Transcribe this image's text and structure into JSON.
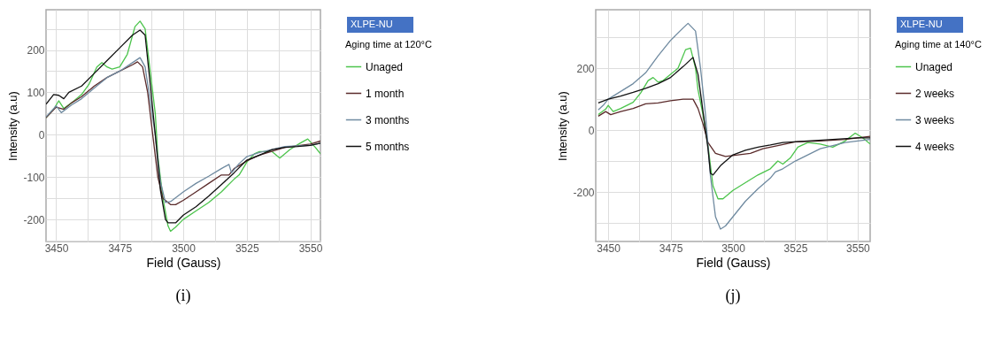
{
  "chart_data": [
    {
      "type": "line",
      "xlabel": "Field (Gauss)",
      "ylabel": "Intensity (a.u)",
      "legend_title": "Aging time at 120°C",
      "legend": "right",
      "grid": true,
      "marker": "none",
      "line_style": "solid",
      "annotations": [
        "XLPE-NU",
        "(i)"
      ],
      "xlim": [
        3446,
        3554
      ],
      "ylim": [
        -252,
        295
      ],
      "xticks": [
        3450,
        {
          "value": 3462.5,
          "label": null
        },
        3475,
        {
          "value": 3487.5,
          "label": null
        },
        3500,
        {
          "value": 3512.5,
          "label": null
        },
        3525,
        {
          "value": 3537.5,
          "label": null
        },
        3550
      ],
      "yticks": [
        {
          "value": -250,
          "label": null
        },
        -200,
        {
          "value": -150,
          "label": null
        },
        -100,
        {
          "value": -50,
          "label": null
        },
        0,
        {
          "value": 50,
          "label": null
        },
        100,
        {
          "value": 150,
          "label": null
        },
        200,
        {
          "value": 250,
          "label": null
        }
      ],
      "series": [
        {
          "name": "Unaged",
          "color": "#4cc44c",
          "x": [
            3446,
            3449,
            3451,
            3453,
            3456,
            3460,
            3463,
            3466,
            3468,
            3470,
            3472,
            3475,
            3478,
            3481,
            3483,
            3485,
            3487,
            3489,
            3490,
            3492,
            3494,
            3495,
            3497,
            3500,
            3505,
            3510,
            3515,
            3520,
            3522,
            3525,
            3528,
            3530,
            3535,
            3538,
            3542,
            3546,
            3549,
            3552,
            3554
          ],
          "values": [
            40,
            60,
            80,
            62,
            75,
            95,
            120,
            160,
            170,
            160,
            155,
            160,
            190,
            255,
            268,
            250,
            150,
            50,
            -50,
            -150,
            -215,
            -228,
            -218,
            -200,
            -180,
            -160,
            -135,
            -105,
            -95,
            -65,
            -45,
            -40,
            -40,
            -55,
            -35,
            -20,
            -10,
            -30,
            -45
          ]
        },
        {
          "name": "1 month",
          "color": "#5a2a2a",
          "x": [
            3446,
            3450,
            3453,
            3456,
            3460,
            3465,
            3470,
            3475,
            3480,
            3482,
            3484,
            3486,
            3488,
            3490,
            3492,
            3495,
            3497,
            3500,
            3505,
            3510,
            3515,
            3518,
            3520,
            3525,
            3530,
            3540,
            3550,
            3554
          ],
          "values": [
            40,
            65,
            60,
            75,
            90,
            115,
            135,
            150,
            165,
            172,
            160,
            100,
            0,
            -100,
            -150,
            -165,
            -165,
            -155,
            -135,
            -115,
            -95,
            -95,
            -80,
            -62,
            -48,
            -30,
            -22,
            -15
          ]
        },
        {
          "name": "3 months",
          "color": "#6f8aa0",
          "x": [
            3446,
            3450,
            3452,
            3456,
            3460,
            3465,
            3470,
            3475,
            3480,
            3483,
            3485,
            3487,
            3489,
            3491,
            3493,
            3495,
            3500,
            3505,
            3510,
            3515,
            3518,
            3519,
            3522,
            3525,
            3530,
            3540,
            3550,
            3554
          ],
          "values": [
            42,
            68,
            52,
            70,
            85,
            110,
            135,
            150,
            170,
            182,
            160,
            80,
            0,
            -110,
            -160,
            -158,
            -135,
            -115,
            -98,
            -80,
            -70,
            -90,
            -68,
            -52,
            -42,
            -28,
            -25,
            -20
          ]
        },
        {
          "name": "5 months",
          "color": "#111111",
          "x": [
            3446,
            3449,
            3451,
            3453,
            3455,
            3460,
            3465,
            3470,
            3475,
            3480,
            3483,
            3485,
            3487,
            3489,
            3491,
            3493,
            3494,
            3497,
            3500,
            3505,
            3510,
            3515,
            3520,
            3525,
            3530,
            3535,
            3540,
            3545,
            3550,
            3554
          ],
          "values": [
            72,
            95,
            93,
            85,
            100,
            115,
            145,
            175,
            205,
            235,
            247,
            235,
            120,
            0,
            -130,
            -200,
            -208,
            -208,
            -190,
            -170,
            -145,
            -118,
            -90,
            -60,
            -48,
            -35,
            -30,
            -28,
            -25,
            -20
          ]
        }
      ]
    },
    {
      "type": "line",
      "xlabel": "Field (Gauss)",
      "ylabel": "Intensity (a.u)",
      "legend_title": "Aging time at 140°C",
      "legend": "right",
      "grid": true,
      "marker": "none",
      "line_style": "solid",
      "annotations": [
        "XLPE-NU",
        "(j)"
      ],
      "xlim": [
        3445,
        3555
      ],
      "ylim": [
        -360,
        389
      ],
      "xticks": [
        3450,
        {
          "value": 3462.5,
          "label": null
        },
        3475,
        {
          "value": 3487.5,
          "label": null
        },
        3500,
        {
          "value": 3512.5,
          "label": null
        },
        3525,
        {
          "value": 3537.5,
          "label": null
        },
        3550
      ],
      "yticks": [
        {
          "value": -300,
          "label": null
        },
        -200,
        {
          "value": -100,
          "label": null
        },
        0,
        {
          "value": 100,
          "label": null
        },
        200,
        {
          "value": 300,
          "label": null
        }
      ],
      "series": [
        {
          "name": "Unaged",
          "color": "#4cc44c",
          "x": [
            3446,
            3449,
            3450,
            3452,
            3455,
            3460,
            3463,
            3466,
            3468,
            3470,
            3472,
            3475,
            3478,
            3481,
            3483,
            3485,
            3486,
            3488,
            3490,
            3492,
            3494,
            3496,
            3500,
            3505,
            3510,
            3515,
            3518,
            3520,
            3523,
            3526,
            3530,
            3535,
            3540,
            3545,
            3549,
            3552,
            3555
          ],
          "values": [
            50,
            68,
            80,
            60,
            70,
            90,
            120,
            160,
            170,
            155,
            160,
            180,
            200,
            260,
            265,
            200,
            130,
            50,
            -50,
            -180,
            -222,
            -222,
            -195,
            -170,
            -145,
            -125,
            -100,
            -110,
            -90,
            -55,
            -40,
            -45,
            -55,
            -35,
            -10,
            -25,
            -45
          ]
        },
        {
          "name": "2 weeks",
          "color": "#5a2a2a",
          "x": [
            3446,
            3449,
            3451,
            3455,
            3460,
            3465,
            3470,
            3475,
            3480,
            3484,
            3486,
            3488,
            3490,
            3493,
            3497,
            3502,
            3507,
            3512,
            3518,
            3525,
            3535,
            3545,
            3555
          ],
          "values": [
            45,
            60,
            50,
            60,
            70,
            85,
            88,
            95,
            100,
            100,
            70,
            20,
            -40,
            -75,
            -85,
            -80,
            -75,
            -60,
            -50,
            -38,
            -35,
            -30,
            -20
          ]
        },
        {
          "name": "3 weeks",
          "color": "#6f8aa0",
          "x": [
            3446,
            3448,
            3450,
            3455,
            3460,
            3465,
            3470,
            3475,
            3480,
            3482,
            3485,
            3487,
            3489,
            3491,
            3493,
            3495,
            3497,
            3500,
            3505,
            3510,
            3515,
            3517,
            3520,
            3525,
            3530,
            3535,
            3540,
            3545,
            3550,
            3555
          ],
          "values": [
            65,
            80,
            100,
            125,
            150,
            185,
            240,
            290,
            330,
            345,
            320,
            200,
            50,
            -150,
            -280,
            -320,
            -310,
            -280,
            -230,
            -190,
            -155,
            -135,
            -125,
            -100,
            -80,
            -60,
            -50,
            -40,
            -35,
            -30
          ]
        },
        {
          "name": "4 weeks",
          "color": "#111111",
          "x": [
            3446,
            3450,
            3455,
            3460,
            3465,
            3470,
            3475,
            3480,
            3484,
            3486,
            3488,
            3490,
            3491,
            3492,
            3495,
            3500,
            3505,
            3510,
            3515,
            3520,
            3530,
            3540,
            3550,
            3555
          ],
          "values": [
            88,
            100,
            110,
            122,
            135,
            150,
            170,
            205,
            235,
            180,
            60,
            -60,
            -140,
            -145,
            -115,
            -80,
            -65,
            -55,
            -48,
            -40,
            -35,
            -30,
            -25,
            -25
          ]
        }
      ]
    }
  ]
}
